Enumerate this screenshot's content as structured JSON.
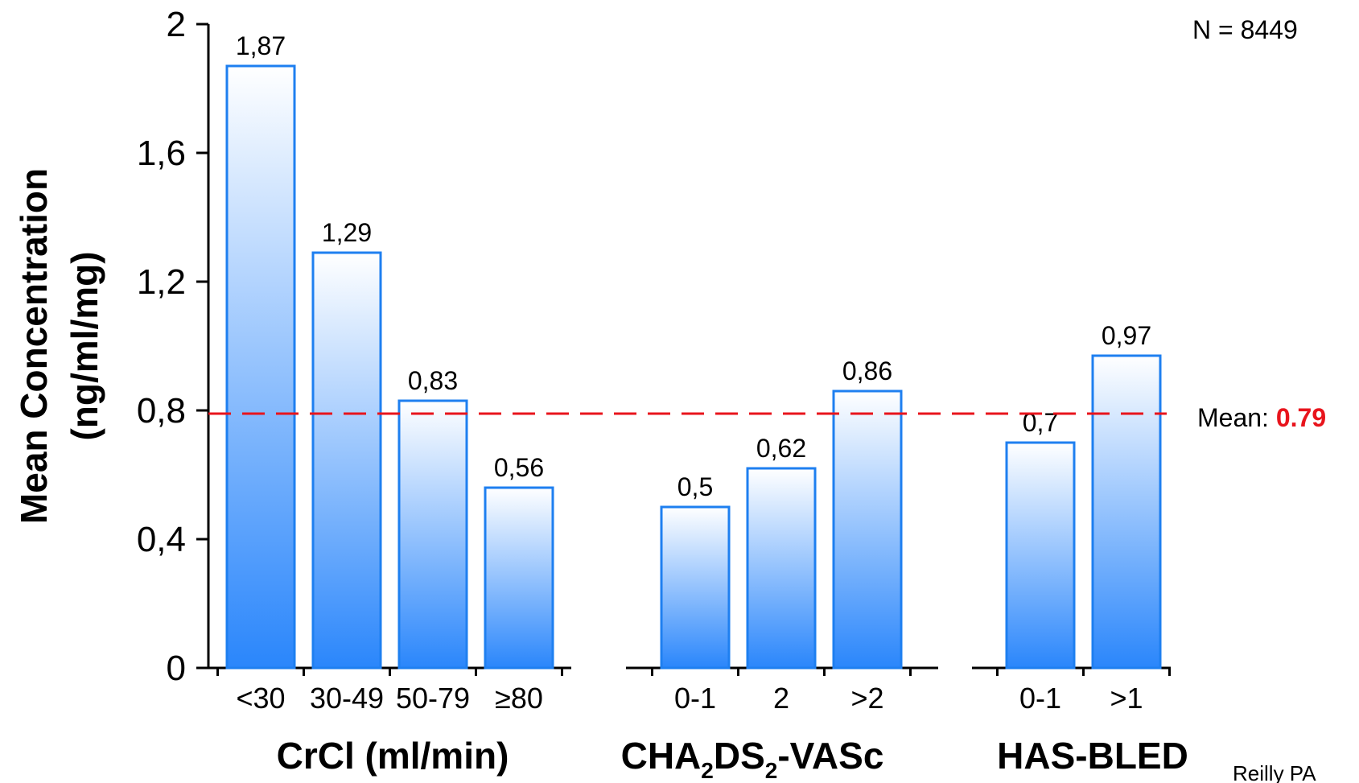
{
  "chart_data": {
    "type": "bar",
    "ylabel_line1": "Mean Concentration",
    "ylabel_line2": "(ng/ml/mg)",
    "ylim": [
      0,
      2
    ],
    "yticks": [
      0,
      0.4,
      0.8,
      1.2,
      1.6,
      2
    ],
    "ytick_labels": [
      "0",
      "0,4",
      "0,8",
      "1,2",
      "1,6",
      "2"
    ],
    "groups": [
      {
        "label": "CrCl (ml/min)",
        "categories": [
          "<30",
          "30-49",
          "50-79",
          "≥80"
        ],
        "values": [
          1.87,
          1.29,
          0.83,
          0.56
        ],
        "value_labels": [
          "1,87",
          "1,29",
          "0,83",
          "0,56"
        ]
      },
      {
        "label_parts": [
          "CHA",
          "2",
          "DS",
          "2",
          "-VASc"
        ],
        "categories": [
          "0-1",
          "2",
          ">2"
        ],
        "values": [
          0.5,
          0.62,
          0.86
        ],
        "value_labels": [
          "0,5",
          "0,62",
          "0,86"
        ]
      },
      {
        "label": "HAS-BLED",
        "categories": [
          "0-1",
          ">1"
        ],
        "values": [
          0.7,
          0.97
        ],
        "value_labels": [
          "0,7",
          "0,97"
        ]
      }
    ],
    "reference_line": {
      "value": 0.79,
      "label_prefix": "Mean: ",
      "label_value": "0.79",
      "color": "#e8141c",
      "style": "dashed"
    },
    "n_label": "N = 8449",
    "source_label": "Reilly PA",
    "bar_fill_top": "#ffffff",
    "bar_fill_bottom": "#2a86fb",
    "bar_stroke": "#1e7ff0",
    "grid": false,
    "legend": "none"
  }
}
